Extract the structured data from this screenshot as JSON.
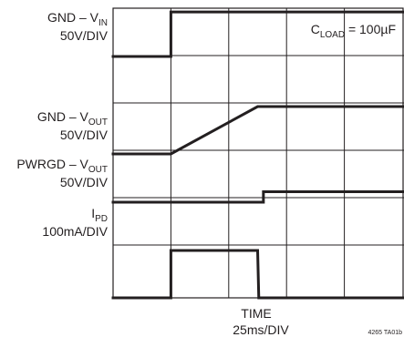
{
  "chart_data": {
    "type": "line",
    "title": "",
    "xlabel": "TIME",
    "x_scale": "25ms/DIV",
    "x_divisions": 5,
    "y_divisions": 10,
    "annotation": {
      "main": "C",
      "sub": "LOAD",
      "rest": " = 100µF"
    },
    "figure_id": "4265 TA01b",
    "traces": [
      {
        "label_main": "GND – V",
        "label_sub": "IN",
        "label_rest": "",
        "scale": "50V/DIV",
        "levels": [
          0,
          0.94
        ],
        "x": [
          0,
          1,
          1,
          5
        ],
        "y": [
          0,
          0,
          0.94,
          0.94
        ]
      },
      {
        "label_main": "GND – V",
        "label_sub": "OUT",
        "label_rest": "",
        "scale": "50V/DIV",
        "levels": [
          0,
          1
        ],
        "x": [
          0,
          1,
          2.5,
          5
        ],
        "y": [
          0,
          0,
          1,
          1
        ]
      },
      {
        "label_main": "PWRGD – V",
        "label_sub": "OUT",
        "label_rest": "",
        "scale": "50V/DIV",
        "levels": [
          0,
          0.22
        ],
        "x": [
          0,
          2.6,
          2.6,
          5
        ],
        "y": [
          0,
          0,
          0.22,
          0.22
        ]
      },
      {
        "label_main": "I",
        "label_sub": "PD",
        "label_rest": "",
        "scale": "100mA/DIV",
        "levels": [
          0,
          1
        ],
        "x": [
          0,
          1,
          1,
          2.5,
          2.52,
          5
        ],
        "y": [
          0,
          0,
          1,
          1,
          0,
          0
        ]
      }
    ]
  }
}
